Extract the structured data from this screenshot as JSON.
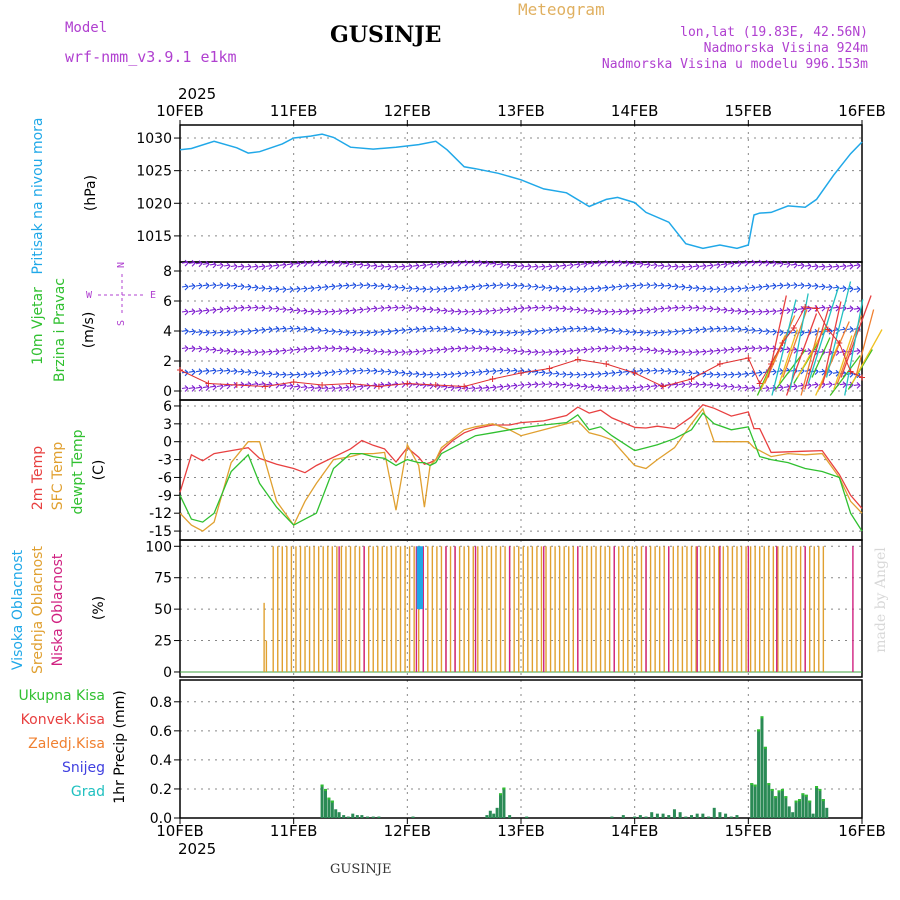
{
  "header": {
    "title": "GUSINJE",
    "meteogram_label": "Meteogram",
    "model_label": "Model",
    "model_name": "wrf-nmm_v3.9.1 e1km",
    "lonlat": "lon,lat (19.83E, 42.56N)",
    "elevation": "Nadmorska Visina 924m",
    "model_elevation": "Nadmorska Visina u modelu 996.153m",
    "footer_title": "GUSINJE",
    "credit": "made by Angel"
  },
  "chart_data": [
    {
      "type": "line",
      "panel": "pressure",
      "ylabel": [
        "Pritisak na nivou mora",
        "(hPa)"
      ],
      "ylim": [
        1011,
        1032
      ],
      "yticks": [
        1015,
        1020,
        1025,
        1030
      ],
      "colors": {
        "pressure": "#20a8e8"
      },
      "x": [
        0,
        0.1,
        0.3,
        0.5,
        0.6,
        0.7,
        0.9,
        1.0,
        1.15,
        1.25,
        1.35,
        1.5,
        1.7,
        1.9,
        2.1,
        2.25,
        2.35,
        2.5,
        2.6,
        2.8,
        3.0,
        3.2,
        3.4,
        3.6,
        3.75,
        3.85,
        4.0,
        4.1,
        4.3,
        4.45,
        4.6,
        4.75,
        4.9,
        5.0,
        5.05,
        5.1,
        5.2,
        5.35,
        5.5,
        5.6,
        5.75,
        5.9,
        6.0
      ],
      "y": [
        1028.2,
        1028.4,
        1029.5,
        1028.5,
        1027.7,
        1027.9,
        1029.1,
        1030.0,
        1030.3,
        1030.6,
        1030.1,
        1028.6,
        1028.3,
        1028.6,
        1029.0,
        1029.5,
        1028.2,
        1025.6,
        1025.3,
        1024.6,
        1023.6,
        1022.2,
        1021.6,
        1019.5,
        1020.6,
        1020.9,
        1020.1,
        1018.6,
        1017.1,
        1013.8,
        1013.1,
        1013.6,
        1013.1,
        1013.6,
        1018.2,
        1018.5,
        1018.6,
        1019.6,
        1019.4,
        1020.6,
        1024.3,
        1027.6,
        1029.4
      ]
    },
    {
      "type": "line",
      "panel": "wind",
      "ylabel": [
        "10m Vjetar",
        "Brzina i Pravac",
        "(m/s)"
      ],
      "compass": {
        "north": "N",
        "east": "E",
        "west": "W",
        "south": "S"
      },
      "ylim": [
        -0.6,
        8.6
      ],
      "yticks": [
        0,
        2,
        4,
        6,
        8
      ],
      "barb_rows": [
        0.3,
        1.2,
        2.7,
        4.0,
        5.4,
        6.9,
        8.4
      ],
      "colors": {
        "speed": "#e03030",
        "barb": "#8020d0",
        "barb_alt": "#2050e0",
        "strong": "#40c020"
      },
      "x": [
        0,
        0.25,
        0.5,
        0.75,
        1.0,
        1.25,
        1.5,
        1.75,
        2.0,
        2.25,
        2.5,
        2.75,
        3.0,
        3.25,
        3.5,
        3.75,
        4.0,
        4.25,
        4.5,
        4.75,
        5.0,
        5.1,
        5.2,
        5.3,
        5.4,
        5.5,
        5.6,
        5.7,
        5.8,
        5.9,
        6.0
      ],
      "y": [
        1.4,
        0.5,
        0.4,
        0.3,
        0.6,
        0.4,
        0.5,
        0.3,
        0.5,
        0.4,
        0.3,
        0.8,
        1.2,
        1.5,
        2.1,
        1.8,
        1.2,
        0.3,
        0.8,
        1.8,
        2.2,
        0.5,
        1.8,
        3.2,
        4.2,
        5.6,
        5.5,
        4.1,
        3.2,
        1.3,
        0.9
      ]
    },
    {
      "type": "line",
      "panel": "temperature",
      "ylabel": [
        "2m Temp",
        "SFC Temp",
        "dewpt Temp",
        "(C)"
      ],
      "ylim": [
        -16.5,
        7
      ],
      "yticks": [
        -15,
        -12,
        -9,
        -6,
        -3,
        0,
        3,
        6
      ],
      "x": [
        0,
        0.1,
        0.2,
        0.3,
        0.45,
        0.6,
        0.7,
        0.85,
        1.0,
        1.1,
        1.2,
        1.35,
        1.5,
        1.6,
        1.7,
        1.8,
        1.9,
        2.0,
        2.1,
        2.15,
        2.2,
        2.25,
        2.3,
        2.4,
        2.5,
        2.6,
        2.75,
        2.9,
        3.0,
        3.2,
        3.4,
        3.5,
        3.6,
        3.7,
        3.8,
        4.0,
        4.1,
        4.2,
        4.35,
        4.5,
        4.6,
        4.7,
        4.85,
        5.0,
        5.05,
        5.1,
        5.2,
        5.35,
        5.5,
        5.65,
        5.8,
        5.9,
        6.0
      ],
      "series": [
        {
          "name": "2m Temp",
          "color": "#e84040",
          "y": [
            -8.5,
            -2.2,
            -3.2,
            -2.0,
            -1.5,
            -1.0,
            -2.8,
            -3.8,
            -4.5,
            -5.2,
            -4.0,
            -2.6,
            -1.2,
            0.2,
            -0.6,
            -1.2,
            -3.4,
            -1.0,
            -2.6,
            -3.8,
            -3.5,
            -3.0,
            -1.5,
            0.2,
            1.5,
            2.2,
            2.8,
            2.8,
            3.2,
            3.5,
            4.4,
            5.8,
            4.8,
            5.3,
            4.0,
            2.4,
            2.3,
            2.6,
            2.2,
            4.2,
            6.2,
            5.6,
            4.3,
            5.0,
            2.2,
            2.2,
            -1.8,
            -1.7,
            -1.6,
            -1.5,
            -5.5,
            -9.0,
            -11.2
          ]
        },
        {
          "name": "SFC Temp",
          "color": "#e0a030",
          "y": [
            -12.0,
            -14.0,
            -15.0,
            -13.5,
            -3.5,
            0.0,
            0.0,
            -10.0,
            -14.0,
            -10.0,
            -7.0,
            -3.0,
            -2.5,
            -2.0,
            -2.0,
            -1.8,
            -11.5,
            -0.5,
            -4.0,
            -11.0,
            -4.0,
            -3.0,
            -1.0,
            0.5,
            2.0,
            2.5,
            3.0,
            2.0,
            1.0,
            2.0,
            3.0,
            3.5,
            1.5,
            1.0,
            0.3,
            -4.0,
            -4.5,
            -3.0,
            -1.0,
            3.0,
            5.5,
            0.0,
            0.0,
            0.0,
            -1.0,
            -1.5,
            -2.5,
            -2.0,
            -2.2,
            -2.0,
            -6.0,
            -10.0,
            -12.0
          ]
        },
        {
          "name": "dewpt Temp",
          "color": "#30c030",
          "y": [
            -9.0,
            -13.0,
            -13.5,
            -12.0,
            -5.0,
            -2.2,
            -7.0,
            -11.0,
            -14.0,
            -13.0,
            -12.0,
            -4.5,
            -2.0,
            -2.0,
            -2.5,
            -2.8,
            -4.0,
            -3.0,
            -3.5,
            -3.5,
            -4.0,
            -3.5,
            -2.0,
            -1.0,
            0.0,
            1.0,
            1.5,
            2.0,
            2.3,
            2.8,
            3.2,
            4.5,
            2.0,
            2.5,
            1.0,
            -1.5,
            -1.0,
            -0.5,
            0.5,
            2.0,
            4.8,
            3.0,
            2.0,
            2.5,
            0.0,
            -2.5,
            -3.0,
            -3.5,
            -4.5,
            -5.0,
            -6.0,
            -12.0,
            -15.0
          ]
        }
      ]
    },
    {
      "type": "bar",
      "panel": "cloud",
      "ylabel": [
        "Visoka Oblacnost",
        "Srednja Oblacnost",
        "Niska Oblacnost",
        "(%)"
      ],
      "ylim": [
        -4,
        105
      ],
      "yticks": [
        0,
        25,
        50,
        75,
        100
      ],
      "series": [
        {
          "name": "Srednja Oblacnost",
          "color": "#e0a030"
        },
        {
          "name": "Niska Oblacnost",
          "color": "#d02080"
        },
        {
          "name": "Visoka Oblacnost",
          "color": "#20a8e8"
        }
      ],
      "values_pct": 100,
      "mid_x": [
        0.74,
        0.76,
        0.82,
        0.86,
        0.9,
        0.94,
        0.98,
        1.02,
        1.06,
        1.1,
        1.14,
        1.18,
        1.22,
        1.26,
        1.3,
        1.34,
        1.38,
        1.42,
        1.46,
        1.5,
        1.54,
        1.58,
        1.62,
        1.66,
        1.7,
        1.74,
        1.78,
        1.82,
        1.86,
        1.9,
        1.94,
        1.98,
        2.02,
        2.06,
        2.1,
        2.14,
        2.18,
        2.22,
        2.26,
        2.3,
        2.34,
        2.38,
        2.42,
        2.46,
        2.5,
        2.54,
        2.58,
        2.62,
        2.66,
        2.7,
        2.74,
        2.78,
        2.82,
        2.86,
        2.9,
        2.94,
        2.98,
        3.02,
        3.06,
        3.1,
        3.14,
        3.18,
        3.22,
        3.26,
        3.3,
        3.34,
        3.38,
        3.42,
        3.46,
        3.5,
        3.54,
        3.58,
        3.62,
        3.66,
        3.7,
        3.74,
        3.78,
        3.82,
        3.86,
        3.9,
        3.94,
        3.98,
        4.02,
        4.06,
        4.1,
        4.14,
        4.18,
        4.22,
        4.26,
        4.3,
        4.34,
        4.38,
        4.42,
        4.46,
        4.5,
        4.54,
        4.58,
        4.62,
        4.66,
        4.7,
        4.74,
        4.78,
        4.82,
        4.86,
        4.9,
        4.94,
        4.98,
        5.02,
        5.06,
        5.1,
        5.14,
        5.18,
        5.22,
        5.26,
        5.3,
        5.34,
        5.38,
        5.42,
        5.46,
        5.5,
        5.54,
        5.58,
        5.62,
        5.66
      ],
      "low_x": [
        1.4,
        1.62,
        2.08,
        2.14,
        2.34,
        2.42,
        2.6,
        2.9,
        3.2,
        3.5,
        3.82,
        4.1,
        4.3,
        4.55,
        4.75,
        5.0,
        5.25,
        5.5,
        5.92
      ],
      "high_x": [
        2.1,
        2.12
      ]
    },
    {
      "type": "bar",
      "panel": "precip",
      "ylabel": [
        "1hr Precip (mm)"
      ],
      "legend": [
        {
          "name": "Ukupna Kisa",
          "color": "#30c030"
        },
        {
          "name": "Konvek.Kisa",
          "color": "#e84040"
        },
        {
          "name": "Zaledj.Kisa",
          "color": "#f08030"
        },
        {
          "name": "Snijeg",
          "color": "#4040e0"
        },
        {
          "name": "Grad",
          "color": "#20c0c0"
        }
      ],
      "ylim": [
        0,
        0.95
      ],
      "yticks": [
        0.0,
        0.2,
        0.4,
        0.6,
        0.8
      ],
      "x": [
        1.25,
        1.28,
        1.31,
        1.34,
        1.37,
        1.4,
        1.44,
        1.48,
        1.52,
        1.56,
        1.6,
        1.65,
        1.7,
        1.75,
        2.05,
        2.7,
        2.73,
        2.76,
        2.79,
        2.82,
        2.85,
        2.9,
        3.05,
        3.8,
        3.9,
        4.0,
        4.05,
        4.1,
        4.15,
        4.2,
        4.25,
        4.3,
        4.35,
        4.4,
        4.45,
        4.5,
        4.55,
        4.6,
        4.65,
        4.7,
        4.75,
        4.8,
        4.85,
        4.9,
        5.03,
        5.06,
        5.09,
        5.12,
        5.15,
        5.18,
        5.21,
        5.24,
        5.27,
        5.3,
        5.33,
        5.36,
        5.39,
        5.42,
        5.45,
        5.48,
        5.51,
        5.54,
        5.57,
        5.6,
        5.63,
        5.66,
        5.69
      ],
      "values": [
        0.23,
        0.2,
        0.14,
        0.12,
        0.06,
        0.04,
        0.02,
        0.01,
        0.03,
        0.02,
        0.02,
        0.01,
        0.01,
        0.01,
        0.01,
        0.02,
        0.05,
        0.03,
        0.07,
        0.17,
        0.21,
        0.02,
        0.01,
        0.01,
        0.02,
        0.01,
        0.02,
        0.01,
        0.04,
        0.03,
        0.03,
        0.02,
        0.06,
        0.04,
        0.01,
        0.02,
        0.03,
        0.03,
        0.01,
        0.07,
        0.04,
        0.03,
        0.01,
        0.02,
        0.24,
        0.23,
        0.61,
        0.7,
        0.49,
        0.24,
        0.2,
        0.15,
        0.19,
        0.2,
        0.15,
        0.08,
        0.04,
        0.12,
        0.13,
        0.17,
        0.16,
        0.12,
        0.03,
        0.22,
        0.2,
        0.13,
        0.07
      ],
      "color": "#2a8a55"
    }
  ],
  "x_axis": {
    "year_label": "2025",
    "labels": [
      "10FEB",
      "11FEB",
      "12FEB",
      "13FEB",
      "14FEB",
      "15FEB",
      "16FEB"
    ]
  }
}
